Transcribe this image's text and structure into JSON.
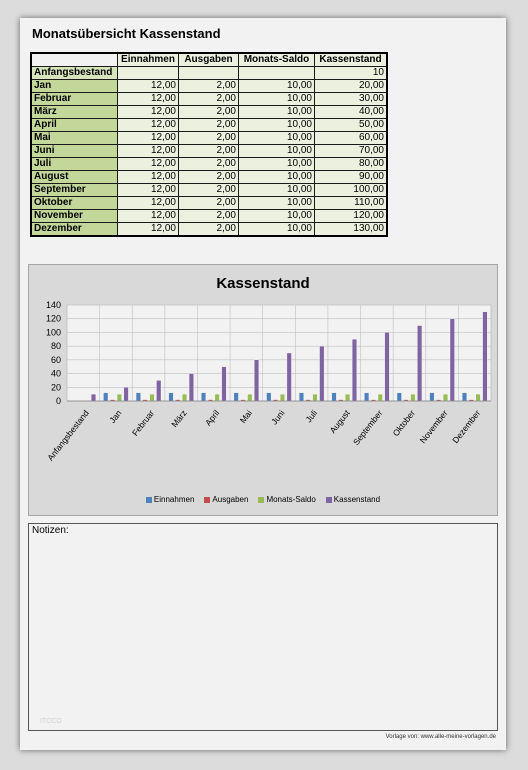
{
  "title": "Monatsübersicht Kassenstand",
  "table": {
    "headers": [
      "Einnahmen",
      "Ausgaben",
      "Monats-Saldo",
      "Kassenstand"
    ],
    "rows": [
      {
        "label": "Anfangsbestand",
        "einnahmen": "",
        "ausgaben": "",
        "saldo": "",
        "kassenstand": "10"
      },
      {
        "label": "Jan",
        "einnahmen": "12,00",
        "ausgaben": "2,00",
        "saldo": "10,00",
        "kassenstand": "20,00"
      },
      {
        "label": "Februar",
        "einnahmen": "12,00",
        "ausgaben": "2,00",
        "saldo": "10,00",
        "kassenstand": "30,00"
      },
      {
        "label": "März",
        "einnahmen": "12,00",
        "ausgaben": "2,00",
        "saldo": "10,00",
        "kassenstand": "40,00"
      },
      {
        "label": "April",
        "einnahmen": "12,00",
        "ausgaben": "2,00",
        "saldo": "10,00",
        "kassenstand": "50,00"
      },
      {
        "label": "Mai",
        "einnahmen": "12,00",
        "ausgaben": "2,00",
        "saldo": "10,00",
        "kassenstand": "60,00"
      },
      {
        "label": "Juni",
        "einnahmen": "12,00",
        "ausgaben": "2,00",
        "saldo": "10,00",
        "kassenstand": "70,00"
      },
      {
        "label": "Juli",
        "einnahmen": "12,00",
        "ausgaben": "2,00",
        "saldo": "10,00",
        "kassenstand": "80,00"
      },
      {
        "label": "August",
        "einnahmen": "12,00",
        "ausgaben": "2,00",
        "saldo": "10,00",
        "kassenstand": "90,00"
      },
      {
        "label": "September",
        "einnahmen": "12,00",
        "ausgaben": "2,00",
        "saldo": "10,00",
        "kassenstand": "100,00"
      },
      {
        "label": "Oktober",
        "einnahmen": "12,00",
        "ausgaben": "2,00",
        "saldo": "10,00",
        "kassenstand": "110,00"
      },
      {
        "label": "November",
        "einnahmen": "12,00",
        "ausgaben": "2,00",
        "saldo": "10,00",
        "kassenstand": "120,00"
      },
      {
        "label": "Dezember",
        "einnahmen": "12,00",
        "ausgaben": "2,00",
        "saldo": "10,00",
        "kassenstand": "130,00"
      }
    ]
  },
  "chart_data": {
    "type": "bar",
    "title": "Kassenstand",
    "categories": [
      "Anfangsbestand",
      "Jan",
      "Februar",
      "März",
      "April",
      "Mai",
      "Juni",
      "Juli",
      "August",
      "September",
      "Oktober",
      "November",
      "Dezember"
    ],
    "series": [
      {
        "name": "Einnahmen",
        "color": "#4f81bd",
        "values": [
          0,
          12,
          12,
          12,
          12,
          12,
          12,
          12,
          12,
          12,
          12,
          12,
          12
        ]
      },
      {
        "name": "Ausgaben",
        "color": "#c0504d",
        "values": [
          0,
          2,
          2,
          2,
          2,
          2,
          2,
          2,
          2,
          2,
          2,
          2,
          2
        ]
      },
      {
        "name": "Monats-Saldo",
        "color": "#9bbb59",
        "values": [
          0,
          10,
          10,
          10,
          10,
          10,
          10,
          10,
          10,
          10,
          10,
          10,
          10
        ]
      },
      {
        "name": "Kassenstand",
        "color": "#8064a2",
        "values": [
          10,
          20,
          30,
          40,
          50,
          60,
          70,
          80,
          90,
          100,
          110,
          120,
          130
        ]
      }
    ],
    "ylim": [
      0,
      140
    ],
    "yticks": [
      0,
      20,
      40,
      60,
      80,
      100,
      120,
      140
    ],
    "grid": true,
    "legend": "bottom"
  },
  "notes_label": "Notizen:",
  "footer": "Vorlage von: www.alle-meine-vorlagen.de",
  "watermark": "ITCCO"
}
